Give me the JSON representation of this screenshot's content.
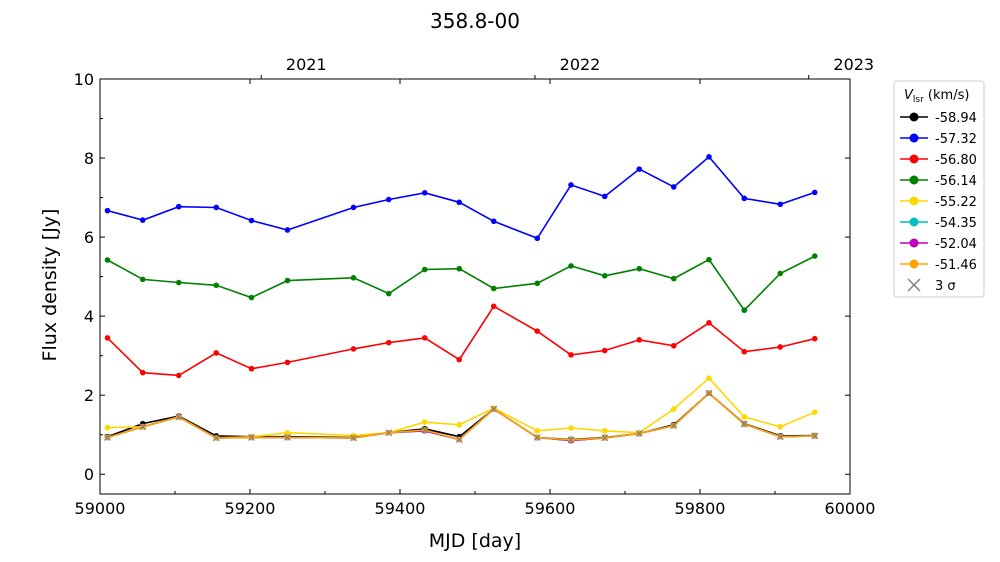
{
  "chart_data": {
    "type": "line",
    "title": "358.8-00",
    "xlabel": "MJD [day]",
    "ylabel": "Flux density [Jy]",
    "xlim": [
      59000,
      60000
    ],
    "ylim": [
      -0.5,
      10
    ],
    "x_ticks": [
      59000,
      59200,
      59400,
      59600,
      59800,
      60000
    ],
    "y_ticks": [
      0,
      2,
      4,
      6,
      8,
      10
    ],
    "top_axis_ticks": [
      {
        "label": "2021",
        "mjd": 59215
      },
      {
        "label": "2022",
        "mjd": 59580
      },
      {
        "label": "2023",
        "mjd": 59945
      }
    ],
    "grid": false,
    "legend_title": {
      "main": "V",
      "sub": "lsr",
      "unit": " (km/s)"
    },
    "legend_position": "outside-right",
    "x": [
      59010,
      59057,
      59105,
      59155,
      59202,
      59250,
      59338,
      59385,
      59433,
      59479,
      59525,
      59583,
      59628,
      59673,
      59719,
      59765,
      59812,
      59859,
      59907,
      59953
    ],
    "series": [
      {
        "name": "-58.94",
        "color": "#000000",
        "values": [
          0.95,
          1.28,
          1.47,
          0.97,
          0.95,
          0.95,
          0.93,
          1.05,
          1.15,
          0.95,
          1.65,
          0.93,
          0.88,
          0.93,
          1.03,
          1.25,
          2.05,
          1.28,
          0.97,
          0.98
        ]
      },
      {
        "name": "-57.32",
        "color": "#0000ff",
        "values": [
          6.67,
          6.43,
          6.77,
          6.75,
          6.42,
          6.18,
          6.75,
          6.95,
          7.12,
          6.88,
          6.4,
          5.97,
          7.32,
          7.03,
          7.72,
          7.27,
          8.03,
          6.98,
          6.83,
          7.13
        ]
      },
      {
        "name": "-56.80",
        "color": "#ff0000",
        "values": [
          3.45,
          2.57,
          2.5,
          3.07,
          2.67,
          2.83,
          3.17,
          3.33,
          3.45,
          2.9,
          4.25,
          3.62,
          3.02,
          3.13,
          3.4,
          3.25,
          3.83,
          3.1,
          3.22,
          3.43
        ]
      },
      {
        "name": "-56.14",
        "color": "#008000",
        "values": [
          5.42,
          4.93,
          4.85,
          4.78,
          4.47,
          4.9,
          4.97,
          4.57,
          5.18,
          5.2,
          4.7,
          4.83,
          5.27,
          5.02,
          5.2,
          4.95,
          5.43,
          4.15,
          5.08,
          5.52
        ]
      },
      {
        "name": "-55.22",
        "color": "#ffd700",
        "values": [
          1.18,
          1.2,
          1.45,
          0.92,
          0.95,
          1.05,
          0.98,
          1.05,
          1.32,
          1.25,
          1.67,
          1.1,
          1.17,
          1.1,
          1.05,
          1.65,
          2.43,
          1.45,
          1.2,
          1.57
        ]
      },
      {
        "name": "-54.35",
        "color": "#00bfbf",
        "values": [
          0.93,
          1.2,
          1.45,
          0.92,
          0.93,
          0.93,
          0.92,
          1.05,
          1.1,
          0.88,
          1.65,
          0.93,
          0.85,
          0.92,
          1.03,
          1.23,
          2.05,
          1.27,
          0.95,
          0.97
        ]
      },
      {
        "name": "-52.04",
        "color": "#bf00bf",
        "values": [
          0.93,
          1.2,
          1.45,
          0.92,
          0.93,
          0.93,
          0.92,
          1.05,
          1.1,
          0.88,
          1.65,
          0.93,
          0.85,
          0.92,
          1.03,
          1.23,
          2.05,
          1.27,
          0.95,
          0.97
        ]
      },
      {
        "name": "-51.46",
        "color": "#ffa500",
        "values": [
          0.93,
          1.2,
          1.45,
          0.92,
          0.93,
          0.93,
          0.92,
          1.05,
          1.12,
          0.88,
          1.65,
          0.93,
          0.87,
          0.92,
          1.03,
          1.23,
          2.05,
          1.27,
          0.95,
          0.97
        ]
      }
    ],
    "sigma_marker": {
      "name": "3 σ",
      "color": "#808080"
    }
  }
}
